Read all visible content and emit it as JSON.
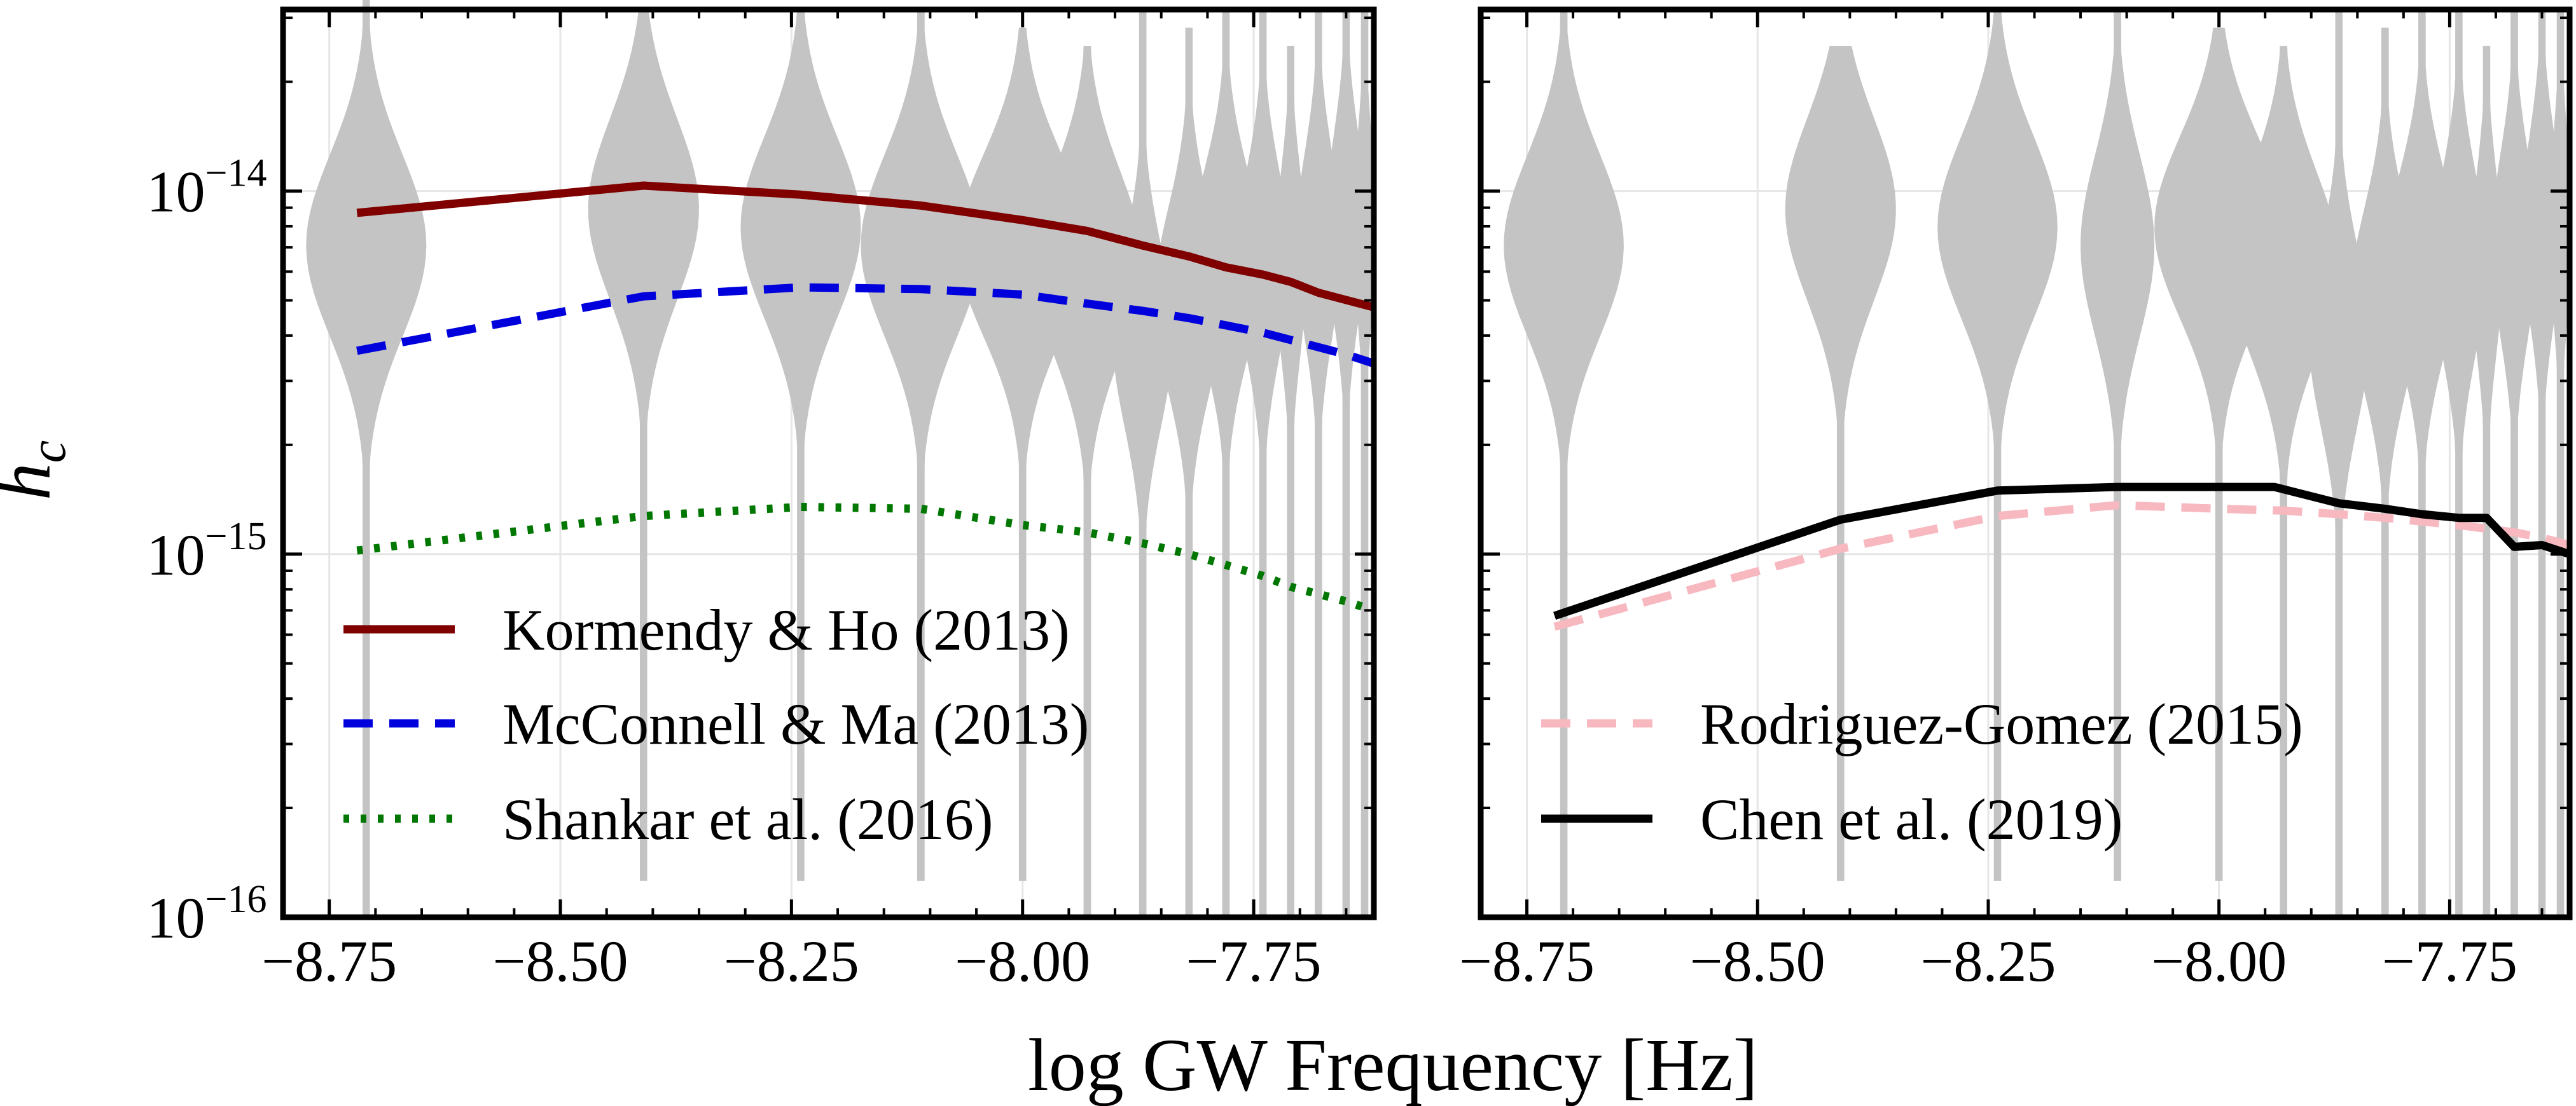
{
  "chart_data": {
    "type": "line",
    "xlabel": "log GW Frequency [Hz]",
    "ylabel": "h",
    "ylabel_subscript": "c",
    "xlim": [
      -8.8,
      -7.62
    ],
    "ylim_log10": [
      -16,
      -13.5
    ],
    "yscale": "log",
    "ytick_labels": [
      {
        "value": -16,
        "base": "10",
        "exponent": "−16"
      },
      {
        "value": -15,
        "base": "10",
        "exponent": "−15"
      },
      {
        "value": -14,
        "base": "10",
        "exponent": "−14"
      }
    ],
    "xtick_values": [
      -8.75,
      -8.5,
      -8.25,
      -8.0,
      -7.75
    ],
    "xtick_labels": [
      "−8.75",
      "−8.50",
      "−8.25",
      "−8.00",
      "−7.75"
    ],
    "grid": true,
    "violin_x": [
      -8.71,
      -8.41,
      -8.24,
      -8.11,
      -8.0,
      -7.93,
      -7.87,
      -7.82,
      -7.78,
      -7.74,
      -7.71,
      -7.68,
      -7.65,
      -7.63
    ],
    "panels": [
      {
        "name": "left",
        "legend_position": "lower-left",
        "violins": [
          {
            "x": -8.71,
            "center": -14.15,
            "width": 0.13,
            "tail_top": -13.45,
            "tail_bottom": -16.0
          },
          {
            "x": -8.41,
            "center": -14.05,
            "width": 0.12,
            "tail_top": -13.5,
            "tail_bottom": -15.9
          },
          {
            "x": -8.24,
            "center": -14.1,
            "width": 0.13,
            "tail_top": -13.5,
            "tail_bottom": -15.9
          },
          {
            "x": -8.11,
            "center": -14.15,
            "width": 0.13,
            "tail_top": -13.5,
            "tail_bottom": -15.9
          },
          {
            "x": -8.0,
            "center": -14.15,
            "width": 0.14,
            "tail_top": -13.55,
            "tail_bottom": -15.9
          },
          {
            "x": -7.93,
            "center": -14.2,
            "width": 0.12,
            "tail_top": -13.6,
            "tail_bottom": -16.0
          },
          {
            "x": -7.87,
            "center": -14.4,
            "width": 0.065,
            "tail_top": -13.5,
            "tail_bottom": -16.0
          },
          {
            "x": -7.82,
            "center": -14.3,
            "width": 0.075,
            "tail_top": -13.55,
            "tail_bottom": -16.0
          },
          {
            "x": -7.78,
            "center": -14.2,
            "width": 0.08,
            "tail_top": -13.5,
            "tail_bottom": -16.0
          },
          {
            "x": -7.74,
            "center": -14.2,
            "width": 0.06,
            "tail_top": -13.5,
            "tail_bottom": -16.0
          },
          {
            "x": -7.71,
            "center": -14.2,
            "width": 0.035,
            "tail_top": -13.6,
            "tail_bottom": -16.0
          },
          {
            "x": -7.68,
            "center": -14.15,
            "width": 0.05,
            "tail_top": -13.5,
            "tail_bottom": -16.0
          },
          {
            "x": -7.65,
            "center": -14.1,
            "width": 0.045,
            "tail_top": -13.5,
            "tail_bottom": -16.0
          },
          {
            "x": -7.63,
            "center": -14.1,
            "width": 0.025,
            "tail_top": -13.5,
            "tail_bottom": -16.0
          }
        ],
        "series": [
          {
            "name": "Kormendy & Ho (2013)",
            "style": "solid",
            "color": "#800000",
            "x": [
              -8.72,
              -8.41,
              -8.24,
              -8.11,
              -8.0,
              -7.93,
              -7.87,
              -7.82,
              -7.78,
              -7.74,
              -7.71,
              -7.68,
              -7.65,
              -7.62
            ],
            "log_y": [
              -14.06,
              -13.985,
              -14.01,
              -14.04,
              -14.08,
              -14.11,
              -14.15,
              -14.18,
              -14.21,
              -14.23,
              -14.25,
              -14.28,
              -14.3,
              -14.32
            ]
          },
          {
            "name": "McConnell & Ma (2013)",
            "style": "dashed",
            "color": "#0000dd",
            "x": [
              -8.72,
              -8.41,
              -8.24,
              -8.11,
              -8.0,
              -7.93,
              -7.87,
              -7.82,
              -7.78,
              -7.74,
              -7.71,
              -7.68,
              -7.65,
              -7.62
            ],
            "log_y": [
              -14.44,
              -14.29,
              -14.265,
              -14.27,
              -14.285,
              -14.31,
              -14.33,
              -14.35,
              -14.37,
              -14.39,
              -14.41,
              -14.43,
              -14.45,
              -14.475
            ]
          },
          {
            "name": "Shankar et al. (2016)",
            "style": "dotted",
            "color": "#007700",
            "x": [
              -8.72,
              -8.41,
              -8.24,
              -8.11,
              -8.0,
              -7.93,
              -7.87,
              -7.82,
              -7.78,
              -7.74,
              -7.71,
              -7.68,
              -7.65,
              -7.62
            ],
            "log_y": [
              -14.99,
              -14.895,
              -14.87,
              -14.875,
              -14.92,
              -14.94,
              -14.97,
              -15.0,
              -15.03,
              -15.06,
              -15.09,
              -15.11,
              -15.13,
              -15.155
            ]
          }
        ]
      },
      {
        "name": "right",
        "legend_position": "lower-left",
        "violins": [
          {
            "x": -8.71,
            "center": -14.15,
            "width": 0.13,
            "tail_top": -13.5,
            "tail_bottom": -16.0
          },
          {
            "x": -8.41,
            "center": -14.05,
            "width": 0.12,
            "tail_top": -13.6,
            "tail_bottom": -15.9
          },
          {
            "x": -8.24,
            "center": -14.1,
            "width": 0.13,
            "tail_top": -13.5,
            "tail_bottom": -15.9
          },
          {
            "x": -8.11,
            "center": -14.15,
            "width": 0.08,
            "tail_top": -13.5,
            "tail_bottom": -15.9
          },
          {
            "x": -8.0,
            "center": -14.1,
            "width": 0.14,
            "tail_top": -13.55,
            "tail_bottom": -15.9
          },
          {
            "x": -7.93,
            "center": -14.2,
            "width": 0.12,
            "tail_top": -13.6,
            "tail_bottom": -16.0
          },
          {
            "x": -7.87,
            "center": -14.4,
            "width": 0.065,
            "tail_top": -13.5,
            "tail_bottom": -16.0
          },
          {
            "x": -7.82,
            "center": -14.3,
            "width": 0.075,
            "tail_top": -13.55,
            "tail_bottom": -16.0
          },
          {
            "x": -7.78,
            "center": -14.2,
            "width": 0.08,
            "tail_top": -13.5,
            "tail_bottom": -16.0
          },
          {
            "x": -7.74,
            "center": -14.2,
            "width": 0.06,
            "tail_top": -13.5,
            "tail_bottom": -16.0
          },
          {
            "x": -7.71,
            "center": -14.2,
            "width": 0.035,
            "tail_top": -13.6,
            "tail_bottom": -16.0
          },
          {
            "x": -7.68,
            "center": -14.15,
            "width": 0.05,
            "tail_top": -13.5,
            "tail_bottom": -16.0
          },
          {
            "x": -7.65,
            "center": -14.1,
            "width": 0.045,
            "tail_top": -13.5,
            "tail_bottom": -16.0
          },
          {
            "x": -7.63,
            "center": -14.1,
            "width": 0.025,
            "tail_top": -13.5,
            "tail_bottom": -16.0
          }
        ],
        "series": [
          {
            "name": "Rodriguez-Gomez (2015)",
            "style": "dashed",
            "color": "#f8b8c0",
            "x": [
              -8.72,
              -8.41,
              -8.24,
              -8.11,
              -8.0,
              -7.93,
              -7.87,
              -7.82,
              -7.78,
              -7.74,
              -7.71,
              -7.68,
              -7.65,
              -7.62
            ],
            "log_y": [
              -15.2,
              -14.985,
              -14.895,
              -14.865,
              -14.875,
              -14.88,
              -14.89,
              -14.9,
              -14.91,
              -14.92,
              -14.93,
              -14.94,
              -14.955,
              -14.975
            ]
          },
          {
            "name": "Chen et al. (2019)",
            "style": "solid",
            "color": "#000000",
            "x": [
              -8.72,
              -8.41,
              -8.24,
              -8.11,
              -8.0,
              -7.94,
              -7.87,
              -7.82,
              -7.78,
              -7.74,
              -7.71,
              -7.68,
              -7.65,
              -7.62
            ],
            "log_y": [
              -15.17,
              -14.905,
              -14.825,
              -14.815,
              -14.815,
              -14.815,
              -14.86,
              -14.875,
              -14.89,
              -14.9,
              -14.9,
              -14.98,
              -14.975,
              -15.0
            ]
          }
        ]
      }
    ]
  }
}
